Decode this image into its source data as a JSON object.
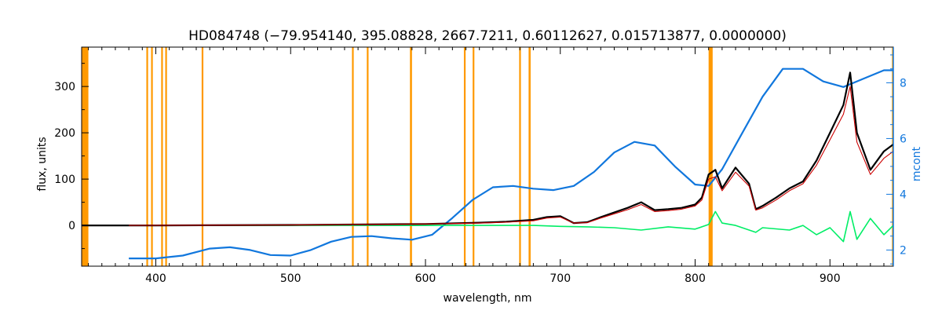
{
  "chart_data": {
    "type": "line",
    "title": "HD084748   (−79.954140, 395.08828, 2667.7211, 0.60112627, 0.015713877, 0.0000000)",
    "xlabel": "wavelength, nm",
    "ylabel": "flux, units",
    "y2label": "mcont",
    "xlim": [
      345,
      947
    ],
    "ylim": [
      -88,
      385
    ],
    "y2lim": [
      1.42,
      9.28
    ],
    "x_ticks": [
      "400",
      "500",
      "600",
      "700",
      "800",
      "900"
    ],
    "y_ticks": [
      "0",
      "100",
      "200",
      "300"
    ],
    "y2_ticks": [
      "2",
      "4",
      "6",
      "8"
    ],
    "grid": false,
    "legend": "none",
    "colors": {
      "observed": "#000000",
      "model": "#cc0000",
      "residual": "#00ee66",
      "mcont": "#1177dd",
      "masked": "#ff9900",
      "axis_right": "#1177dd"
    },
    "masked_regions": [
      [
        345,
        350
      ],
      [
        393,
        394
      ],
      [
        396.5,
        397.5
      ],
      [
        404,
        405
      ],
      [
        407,
        408
      ],
      [
        434,
        435
      ],
      [
        545.5,
        546.5
      ],
      [
        556.5,
        557.5
      ],
      [
        588.5,
        590
      ],
      [
        628.5,
        629.5
      ],
      [
        635,
        636
      ],
      [
        669.5,
        670.5
      ],
      [
        676.5,
        678
      ],
      [
        810,
        813
      ],
      [
        946,
        947
      ]
    ],
    "series": [
      {
        "key": "mcont",
        "axis": "right",
        "x": [
          380,
          400,
          420,
          440,
          455,
          470,
          485,
          500,
          515,
          530,
          545,
          560,
          575,
          590,
          605,
          620,
          635,
          650,
          665,
          680,
          695,
          710,
          725,
          740,
          755,
          770,
          785,
          800,
          810,
          820,
          835,
          850,
          865,
          880,
          895,
          910,
          925,
          940,
          947
        ],
        "values": [
          1.7,
          1.7,
          1.8,
          2.05,
          2.1,
          2.0,
          1.82,
          1.8,
          2.0,
          2.3,
          2.47,
          2.5,
          2.42,
          2.37,
          2.55,
          3.15,
          3.8,
          4.25,
          4.3,
          4.2,
          4.15,
          4.3,
          4.8,
          5.5,
          5.88,
          5.75,
          5.0,
          4.35,
          4.3,
          4.9,
          6.2,
          7.5,
          8.5,
          8.5,
          8.05,
          7.85,
          8.15,
          8.45,
          8.45
        ]
      },
      {
        "key": "residual",
        "axis": "left",
        "x": [
          380,
          500,
          600,
          650,
          680,
          700,
          720,
          740,
          760,
          780,
          800,
          810,
          815,
          820,
          830,
          845,
          850,
          870,
          880,
          890,
          900,
          910,
          915,
          920,
          930,
          940,
          947
        ],
        "values": [
          0,
          0,
          0,
          0,
          0,
          -2,
          -3,
          -5,
          -10,
          -3,
          -8,
          2,
          30,
          5,
          0,
          -15,
          -5,
          -10,
          0,
          -20,
          -5,
          -35,
          30,
          -30,
          15,
          -20,
          0
        ]
      },
      {
        "key": "observed",
        "axis": "left",
        "x": [
          345,
          400,
          500,
          600,
          640,
          660,
          680,
          690,
          700,
          710,
          720,
          730,
          740,
          750,
          760,
          770,
          780,
          790,
          800,
          805,
          810,
          815,
          820,
          830,
          840,
          845,
          850,
          860,
          870,
          880,
          890,
          900,
          910,
          915,
          920,
          925,
          930,
          940,
          947
        ],
        "values": [
          0,
          0,
          1,
          3,
          6,
          8,
          12,
          18,
          20,
          5,
          7,
          18,
          28,
          38,
          50,
          33,
          35,
          38,
          45,
          60,
          110,
          120,
          80,
          125,
          90,
          35,
          42,
          60,
          80,
          95,
          140,
          200,
          260,
          330,
          200,
          160,
          120,
          160,
          175
        ]
      },
      {
        "key": "model",
        "axis": "left",
        "x": [
          380,
          500,
          600,
          640,
          660,
          680,
          690,
          700,
          710,
          720,
          730,
          740,
          750,
          760,
          770,
          780,
          790,
          800,
          805,
          810,
          815,
          820,
          830,
          840,
          845,
          850,
          860,
          870,
          880,
          890,
          900,
          910,
          915,
          920,
          925,
          930,
          940,
          947
        ],
        "values": [
          0,
          1,
          3,
          5,
          7,
          10,
          16,
          18,
          5,
          6,
          16,
          25,
          34,
          45,
          30,
          32,
          35,
          42,
          55,
          100,
          105,
          75,
          115,
          85,
          33,
          38,
          55,
          75,
          90,
          130,
          185,
          240,
          300,
          180,
          145,
          110,
          145,
          160
        ]
      }
    ]
  }
}
